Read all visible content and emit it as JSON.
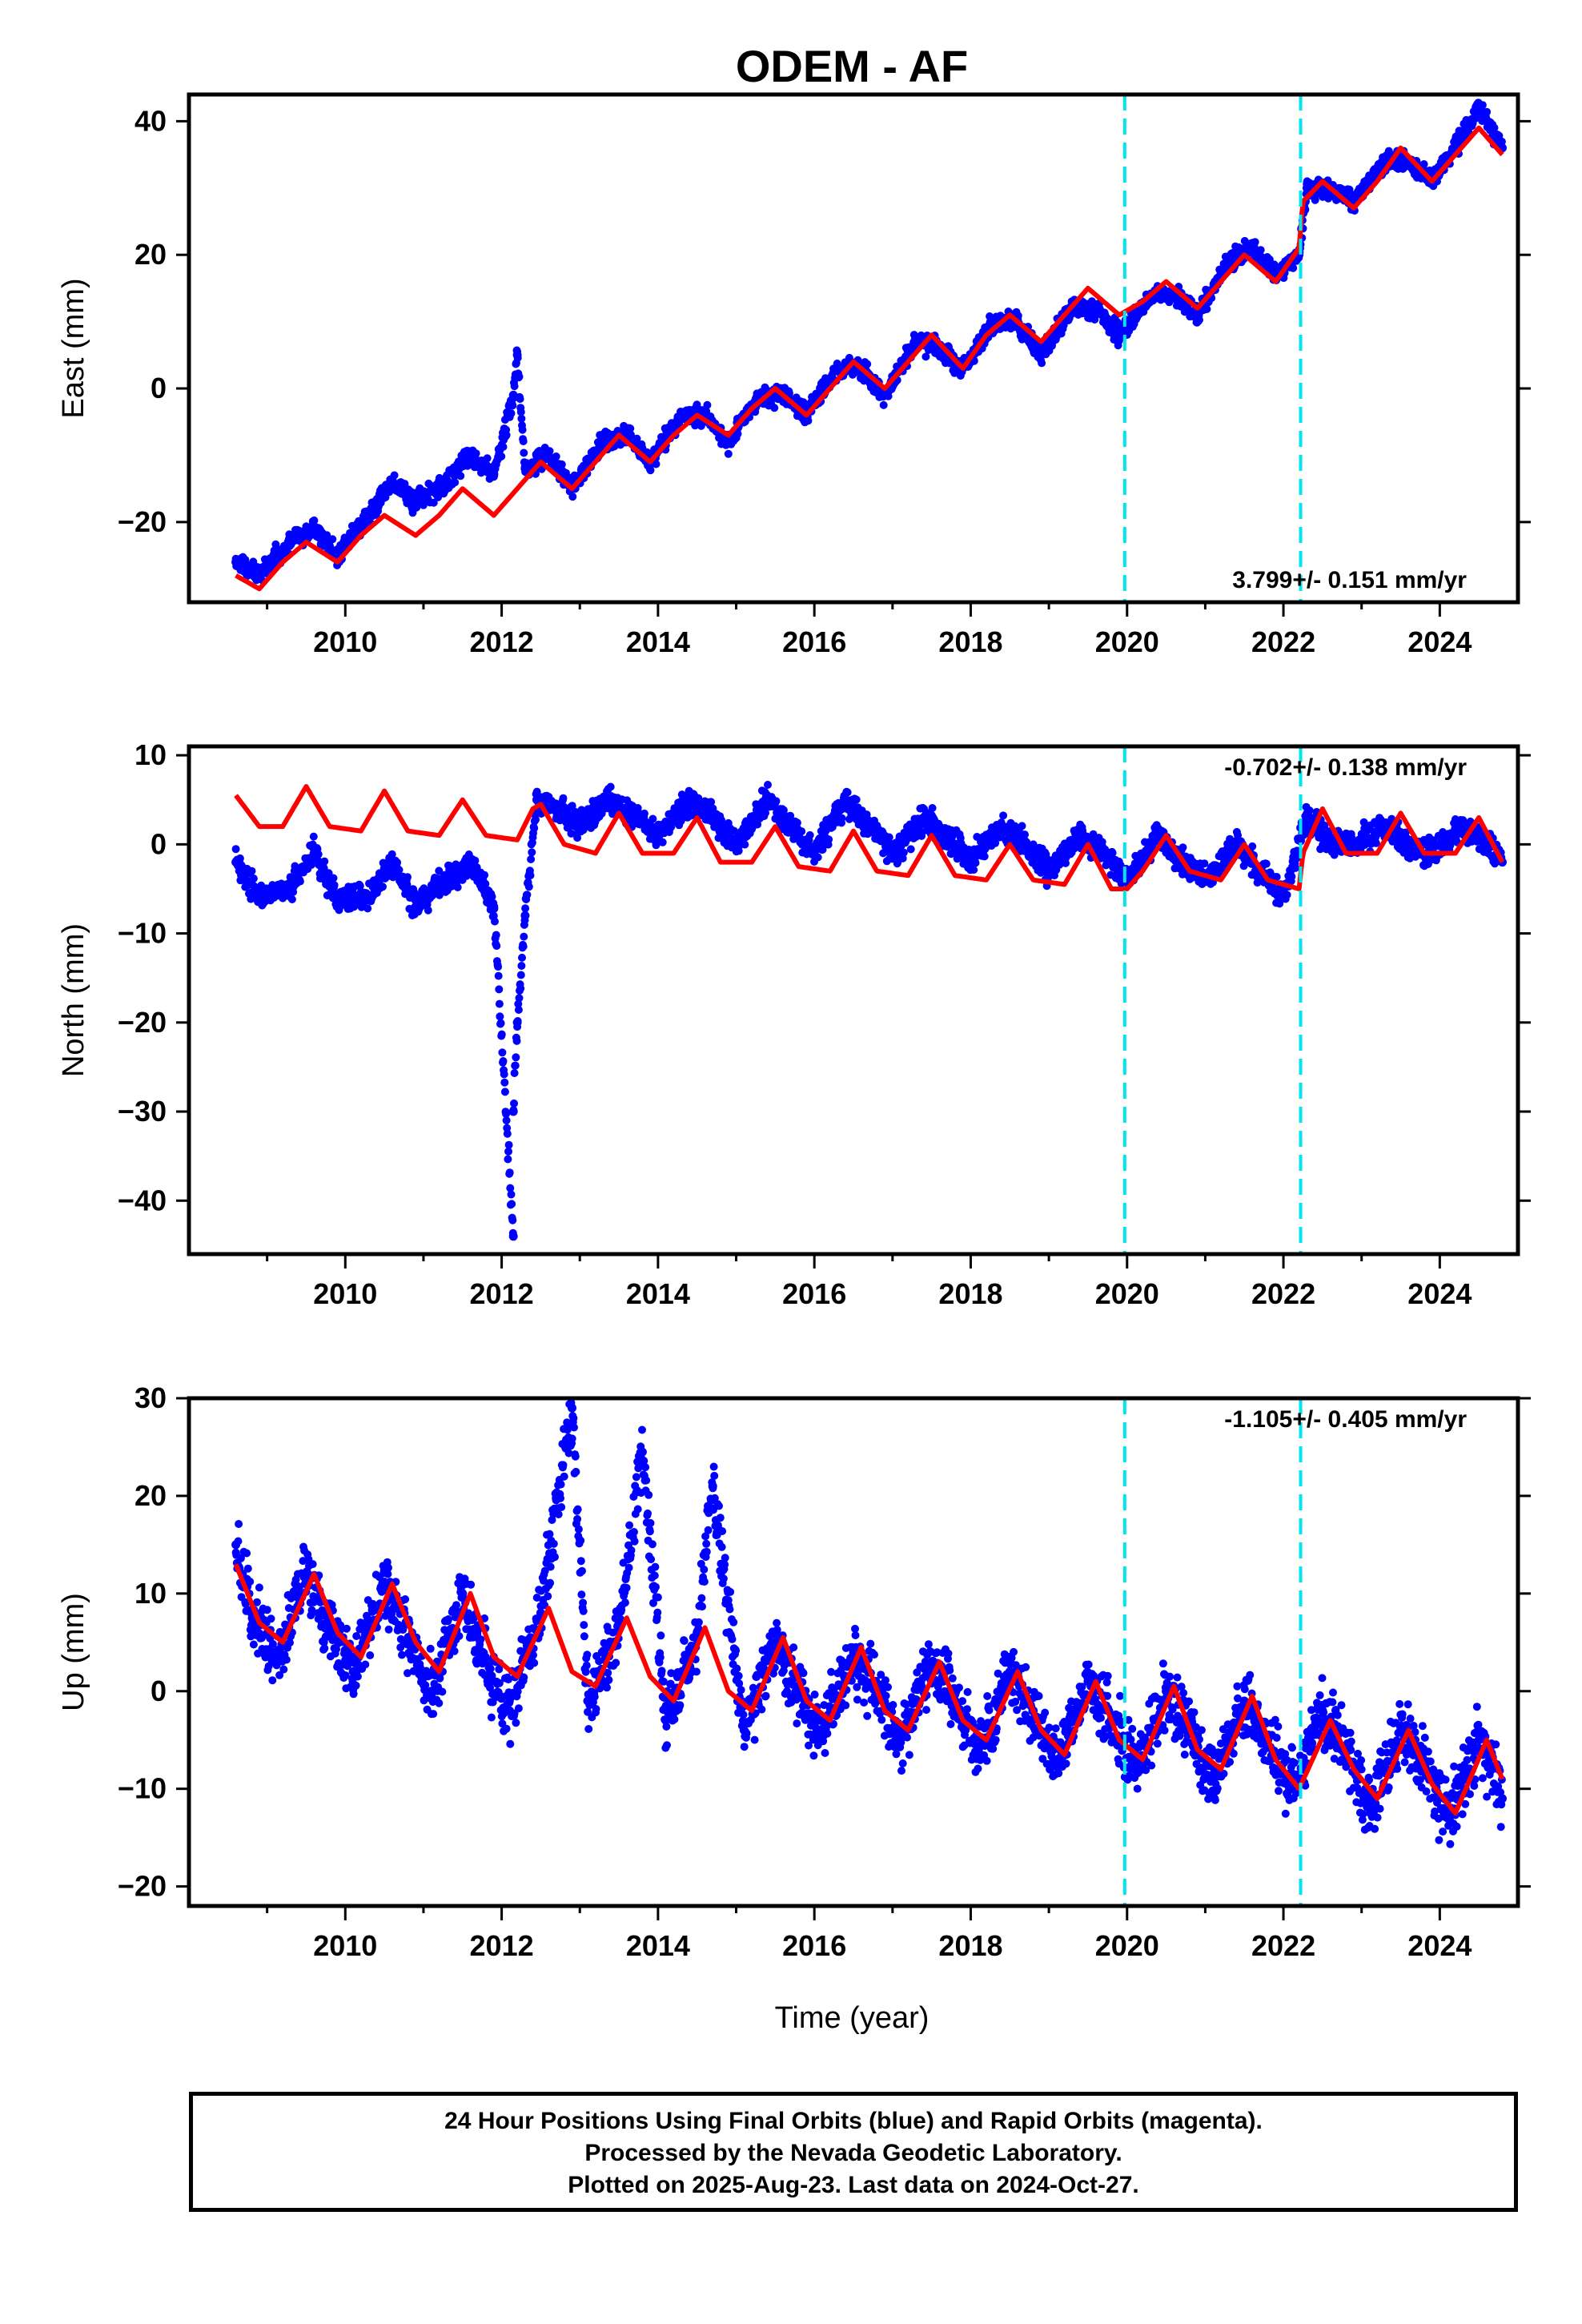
{
  "title": "ODEM - AF",
  "xlabel": "Time (year)",
  "footer": [
    "24 Hour Positions Using Final Orbits (blue) and Rapid Orbits (magenta).",
    "Processed by the Nevada Geodetic Laboratory.",
    "Plotted on 2025-Aug-23. Last data on 2024-Oct-27."
  ],
  "colors": {
    "data": "#0000ff",
    "model": "#ff0000",
    "offset_line": "#00e5ee"
  },
  "chart_data": [
    {
      "type": "scatter",
      "ylabel": "East (mm)",
      "xlim": [
        2008.0,
        2025.0
      ],
      "ylim": [
        -32,
        44
      ],
      "xticks": [
        2010,
        2012,
        2014,
        2016,
        2018,
        2020,
        2022,
        2024
      ],
      "yticks": [
        -20,
        0,
        20,
        40
      ],
      "rate_label": "3.799+/- 0.151 mm/yr",
      "rate_position": "bottom-right",
      "offset_lines_x": [
        2019.97,
        2022.22
      ],
      "data_series_points": [
        [
          2008.6,
          -26
        ],
        [
          2008.9,
          -28
        ],
        [
          2009.3,
          -23
        ],
        [
          2009.6,
          -21
        ],
        [
          2009.9,
          -25
        ],
        [
          2010.3,
          -19
        ],
        [
          2010.6,
          -14
        ],
        [
          2010.9,
          -17
        ],
        [
          2011.3,
          -14
        ],
        [
          2011.6,
          -10
        ],
        [
          2011.9,
          -13
        ],
        [
          2012.15,
          -1
        ],
        [
          2012.2,
          5
        ],
        [
          2012.3,
          -12
        ],
        [
          2012.6,
          -10
        ],
        [
          2012.9,
          -15
        ],
        [
          2013.3,
          -8
        ],
        [
          2013.6,
          -7
        ],
        [
          2013.9,
          -11
        ],
        [
          2014.3,
          -4
        ],
        [
          2014.6,
          -4
        ],
        [
          2014.9,
          -8
        ],
        [
          2015.3,
          -1
        ],
        [
          2015.6,
          -1
        ],
        [
          2015.9,
          -4
        ],
        [
          2016.3,
          3
        ],
        [
          2016.6,
          3
        ],
        [
          2016.9,
          -1
        ],
        [
          2017.3,
          7
        ],
        [
          2017.6,
          6
        ],
        [
          2017.9,
          3
        ],
        [
          2018.3,
          10
        ],
        [
          2018.6,
          10
        ],
        [
          2018.9,
          5
        ],
        [
          2019.3,
          12
        ],
        [
          2019.6,
          12
        ],
        [
          2019.9,
          8
        ],
        [
          2020.3,
          14
        ],
        [
          2020.6,
          14
        ],
        [
          2020.9,
          11
        ],
        [
          2021.3,
          19
        ],
        [
          2021.6,
          21
        ],
        [
          2021.9,
          17
        ],
        [
          2022.2,
          20
        ],
        [
          2022.3,
          30
        ],
        [
          2022.6,
          30
        ],
        [
          2022.9,
          28
        ],
        [
          2023.3,
          34
        ],
        [
          2023.6,
          34
        ],
        [
          2023.9,
          31
        ],
        [
          2024.3,
          38
        ],
        [
          2024.5,
          42
        ],
        [
          2024.8,
          36
        ]
      ],
      "model_series_points": [
        [
          2008.6,
          -28
        ],
        [
          2008.9,
          -30
        ],
        [
          2009.2,
          -26
        ],
        [
          2009.5,
          -23
        ],
        [
          2009.9,
          -26
        ],
        [
          2010.2,
          -22
        ],
        [
          2010.5,
          -19
        ],
        [
          2010.9,
          -22
        ],
        [
          2011.2,
          -19
        ],
        [
          2011.5,
          -15
        ],
        [
          2011.9,
          -19
        ],
        [
          2012.2,
          -15
        ],
        [
          2012.5,
          -11
        ],
        [
          2012.9,
          -15
        ],
        [
          2013.2,
          -11
        ],
        [
          2013.5,
          -7
        ],
        [
          2013.9,
          -11
        ],
        [
          2014.2,
          -7
        ],
        [
          2014.5,
          -4
        ],
        [
          2014.9,
          -7
        ],
        [
          2015.2,
          -3
        ],
        [
          2015.5,
          0
        ],
        [
          2015.9,
          -4
        ],
        [
          2016.2,
          0
        ],
        [
          2016.5,
          4
        ],
        [
          2016.9,
          0
        ],
        [
          2017.2,
          4
        ],
        [
          2017.5,
          8
        ],
        [
          2017.9,
          3
        ],
        [
          2018.2,
          8
        ],
        [
          2018.5,
          11
        ],
        [
          2018.9,
          7
        ],
        [
          2019.2,
          11
        ],
        [
          2019.5,
          15
        ],
        [
          2019.9,
          11
        ],
        [
          2020.2,
          13
        ],
        [
          2020.5,
          16
        ],
        [
          2020.9,
          12
        ],
        [
          2021.2,
          16
        ],
        [
          2021.5,
          20
        ],
        [
          2021.9,
          16
        ],
        [
          2022.2,
          21
        ],
        [
          2022.25,
          28
        ],
        [
          2022.5,
          31
        ],
        [
          2022.9,
          27
        ],
        [
          2023.2,
          31
        ],
        [
          2023.5,
          36
        ],
        [
          2023.9,
          31
        ],
        [
          2024.2,
          35
        ],
        [
          2024.5,
          39
        ],
        [
          2024.8,
          35
        ]
      ]
    },
    {
      "type": "scatter",
      "ylabel": "North (mm)",
      "xlim": [
        2008.0,
        2025.0
      ],
      "ylim": [
        -46,
        11
      ],
      "xticks": [
        2010,
        2012,
        2014,
        2016,
        2018,
        2020,
        2022,
        2024
      ],
      "yticks": [
        -40,
        -30,
        -20,
        -10,
        0,
        10
      ],
      "rate_label": "-0.702+/- 0.138 mm/yr",
      "rate_position": "top-right",
      "offset_lines_x": [
        2019.97,
        2022.22
      ],
      "data_series_points": [
        [
          2008.6,
          -2
        ],
        [
          2008.9,
          -6
        ],
        [
          2009.3,
          -5
        ],
        [
          2009.6,
          -1
        ],
        [
          2009.9,
          -6
        ],
        [
          2010.3,
          -6
        ],
        [
          2010.6,
          -2
        ],
        [
          2010.9,
          -7
        ],
        [
          2011.3,
          -4
        ],
        [
          2011.6,
          -2
        ],
        [
          2011.9,
          -7
        ],
        [
          2012.15,
          -44
        ],
        [
          2012.15,
          -30
        ],
        [
          2012.2,
          -20
        ],
        [
          2012.3,
          -8
        ],
        [
          2012.45,
          5
        ],
        [
          2012.7,
          4
        ],
        [
          2013.0,
          2
        ],
        [
          2013.4,
          5
        ],
        [
          2013.7,
          3
        ],
        [
          2014.0,
          1
        ],
        [
          2014.4,
          5
        ],
        [
          2014.7,
          3
        ],
        [
          2015.0,
          0
        ],
        [
          2015.4,
          5
        ],
        [
          2015.7,
          2
        ],
        [
          2016.0,
          -1
        ],
        [
          2016.4,
          5
        ],
        [
          2016.7,
          2
        ],
        [
          2017.0,
          -1
        ],
        [
          2017.4,
          3
        ],
        [
          2017.7,
          1
        ],
        [
          2018.0,
          -2
        ],
        [
          2018.4,
          2
        ],
        [
          2018.7,
          0
        ],
        [
          2019.0,
          -3
        ],
        [
          2019.4,
          1
        ],
        [
          2019.7,
          -1
        ],
        [
          2020.0,
          -4
        ],
        [
          2020.4,
          1
        ],
        [
          2020.7,
          -2
        ],
        [
          2021.0,
          -4
        ],
        [
          2021.4,
          0
        ],
        [
          2021.7,
          -3
        ],
        [
          2022.0,
          -6
        ],
        [
          2022.3,
          3
        ],
        [
          2022.6,
          0
        ],
        [
          2022.9,
          0
        ],
        [
          2023.3,
          2
        ],
        [
          2023.6,
          0
        ],
        [
          2023.9,
          -1
        ],
        [
          2024.3,
          2
        ],
        [
          2024.6,
          0
        ],
        [
          2024.8,
          -2
        ]
      ],
      "model_series_points": [
        [
          2008.6,
          5.5
        ],
        [
          2008.9,
          2
        ],
        [
          2009.2,
          2
        ],
        [
          2009.5,
          6.5
        ],
        [
          2009.8,
          2
        ],
        [
          2010.2,
          1.5
        ],
        [
          2010.5,
          6
        ],
        [
          2010.8,
          1.5
        ],
        [
          2011.2,
          1
        ],
        [
          2011.5,
          5
        ],
        [
          2011.8,
          1
        ],
        [
          2012.2,
          0.5
        ],
        [
          2012.4,
          4
        ],
        [
          2012.5,
          4.5
        ],
        [
          2012.8,
          0
        ],
        [
          2013.2,
          -1
        ],
        [
          2013.5,
          3.5
        ],
        [
          2013.8,
          -1
        ],
        [
          2014.2,
          -1
        ],
        [
          2014.5,
          3
        ],
        [
          2014.8,
          -2
        ],
        [
          2015.2,
          -2
        ],
        [
          2015.5,
          2
        ],
        [
          2015.8,
          -2.5
        ],
        [
          2016.2,
          -3
        ],
        [
          2016.5,
          1.5
        ],
        [
          2016.8,
          -3
        ],
        [
          2017.2,
          -3.5
        ],
        [
          2017.5,
          1
        ],
        [
          2017.8,
          -3.5
        ],
        [
          2018.2,
          -4
        ],
        [
          2018.5,
          0
        ],
        [
          2018.8,
          -4
        ],
        [
          2019.2,
          -4.5
        ],
        [
          2019.5,
          0
        ],
        [
          2019.8,
          -5
        ],
        [
          2020.0,
          -5
        ],
        [
          2020.2,
          -3
        ],
        [
          2020.5,
          1
        ],
        [
          2020.8,
          -3
        ],
        [
          2021.2,
          -4
        ],
        [
          2021.5,
          0
        ],
        [
          2021.8,
          -4
        ],
        [
          2022.2,
          -5
        ],
        [
          2022.25,
          -1
        ],
        [
          2022.5,
          4
        ],
        [
          2022.8,
          -1
        ],
        [
          2023.2,
          -1
        ],
        [
          2023.5,
          3.5
        ],
        [
          2023.8,
          -1
        ],
        [
          2024.2,
          -1
        ],
        [
          2024.5,
          3
        ],
        [
          2024.8,
          -2
        ]
      ]
    },
    {
      "type": "scatter",
      "ylabel": "Up (mm)",
      "xlim": [
        2008.0,
        2025.0
      ],
      "ylim": [
        -22,
        30
      ],
      "xticks": [
        2010,
        2012,
        2014,
        2016,
        2018,
        2020,
        2022,
        2024
      ],
      "yticks": [
        -20,
        -10,
        0,
        10,
        20,
        30
      ],
      "rate_label": "-1.105+/- 0.405 mm/yr",
      "rate_position": "top-right",
      "offset_lines_x": [
        2019.97,
        2022.22
      ],
      "data_series_points": [
        [
          2008.6,
          15
        ],
        [
          2008.8,
          8
        ],
        [
          2009.1,
          3
        ],
        [
          2009.5,
          12
        ],
        [
          2009.8,
          6
        ],
        [
          2010.1,
          2
        ],
        [
          2010.5,
          11
        ],
        [
          2010.8,
          5
        ],
        [
          2011.1,
          0
        ],
        [
          2011.5,
          10
        ],
        [
          2011.8,
          3
        ],
        [
          2012.1,
          -2
        ],
        [
          2012.5,
          8
        ],
        [
          2012.9,
          29
        ],
        [
          2013.1,
          -1
        ],
        [
          2013.5,
          7
        ],
        [
          2013.8,
          24.5
        ],
        [
          2014.1,
          -3
        ],
        [
          2014.5,
          6
        ],
        [
          2014.7,
          21
        ],
        [
          2015.1,
          -4
        ],
        [
          2015.5,
          5
        ],
        [
          2015.8,
          0
        ],
        [
          2016.1,
          -5
        ],
        [
          2016.5,
          4
        ],
        [
          2016.8,
          0
        ],
        [
          2017.1,
          -5
        ],
        [
          2017.5,
          3
        ],
        [
          2017.8,
          -1
        ],
        [
          2018.1,
          -6
        ],
        [
          2018.5,
          2
        ],
        [
          2018.8,
          -2
        ],
        [
          2019.1,
          -7
        ],
        [
          2019.5,
          1
        ],
        [
          2019.8,
          -3
        ],
        [
          2020.1,
          -8
        ],
        [
          2020.5,
          0
        ],
        [
          2020.8,
          -4
        ],
        [
          2021.1,
          -9
        ],
        [
          2021.5,
          -1
        ],
        [
          2021.8,
          -5
        ],
        [
          2022.1,
          -10
        ],
        [
          2022.5,
          -2
        ],
        [
          2022.8,
          -6
        ],
        [
          2023.1,
          -12
        ],
        [
          2023.5,
          -4
        ],
        [
          2023.8,
          -8
        ],
        [
          2024.1,
          -13
        ],
        [
          2024.5,
          -5
        ],
        [
          2024.8,
          -11
        ]
      ],
      "model_series_points": [
        [
          2008.6,
          13
        ],
        [
          2008.9,
          7
        ],
        [
          2009.2,
          5
        ],
        [
          2009.6,
          12
        ],
        [
          2009.9,
          6
        ],
        [
          2010.2,
          3.5
        ],
        [
          2010.6,
          11
        ],
        [
          2010.9,
          5
        ],
        [
          2011.2,
          2
        ],
        [
          2011.6,
          10
        ],
        [
          2011.9,
          3.5
        ],
        [
          2012.2,
          1.5
        ],
        [
          2012.6,
          8.5
        ],
        [
          2012.9,
          2
        ],
        [
          2013.2,
          0.5
        ],
        [
          2013.6,
          7.5
        ],
        [
          2013.9,
          1.5
        ],
        [
          2014.2,
          -1
        ],
        [
          2014.6,
          6.5
        ],
        [
          2014.9,
          0
        ],
        [
          2015.2,
          -2
        ],
        [
          2015.6,
          5.5
        ],
        [
          2015.9,
          -1
        ],
        [
          2016.2,
          -3
        ],
        [
          2016.6,
          4.5
        ],
        [
          2016.9,
          -2
        ],
        [
          2017.2,
          -4
        ],
        [
          2017.6,
          3
        ],
        [
          2017.9,
          -3
        ],
        [
          2018.2,
          -5
        ],
        [
          2018.6,
          2
        ],
        [
          2018.9,
          -4
        ],
        [
          2019.2,
          -6.5
        ],
        [
          2019.6,
          1
        ],
        [
          2019.9,
          -5
        ],
        [
          2020.2,
          -7
        ],
        [
          2020.6,
          0.5
        ],
        [
          2020.9,
          -6
        ],
        [
          2021.2,
          -8
        ],
        [
          2021.6,
          -0.5
        ],
        [
          2021.9,
          -7
        ],
        [
          2022.2,
          -10
        ],
        [
          2022.6,
          -3
        ],
        [
          2022.9,
          -8
        ],
        [
          2023.2,
          -11
        ],
        [
          2023.6,
          -4
        ],
        [
          2023.9,
          -9.5
        ],
        [
          2024.2,
          -12.5
        ],
        [
          2024.6,
          -5
        ],
        [
          2024.8,
          -9
        ]
      ]
    }
  ]
}
